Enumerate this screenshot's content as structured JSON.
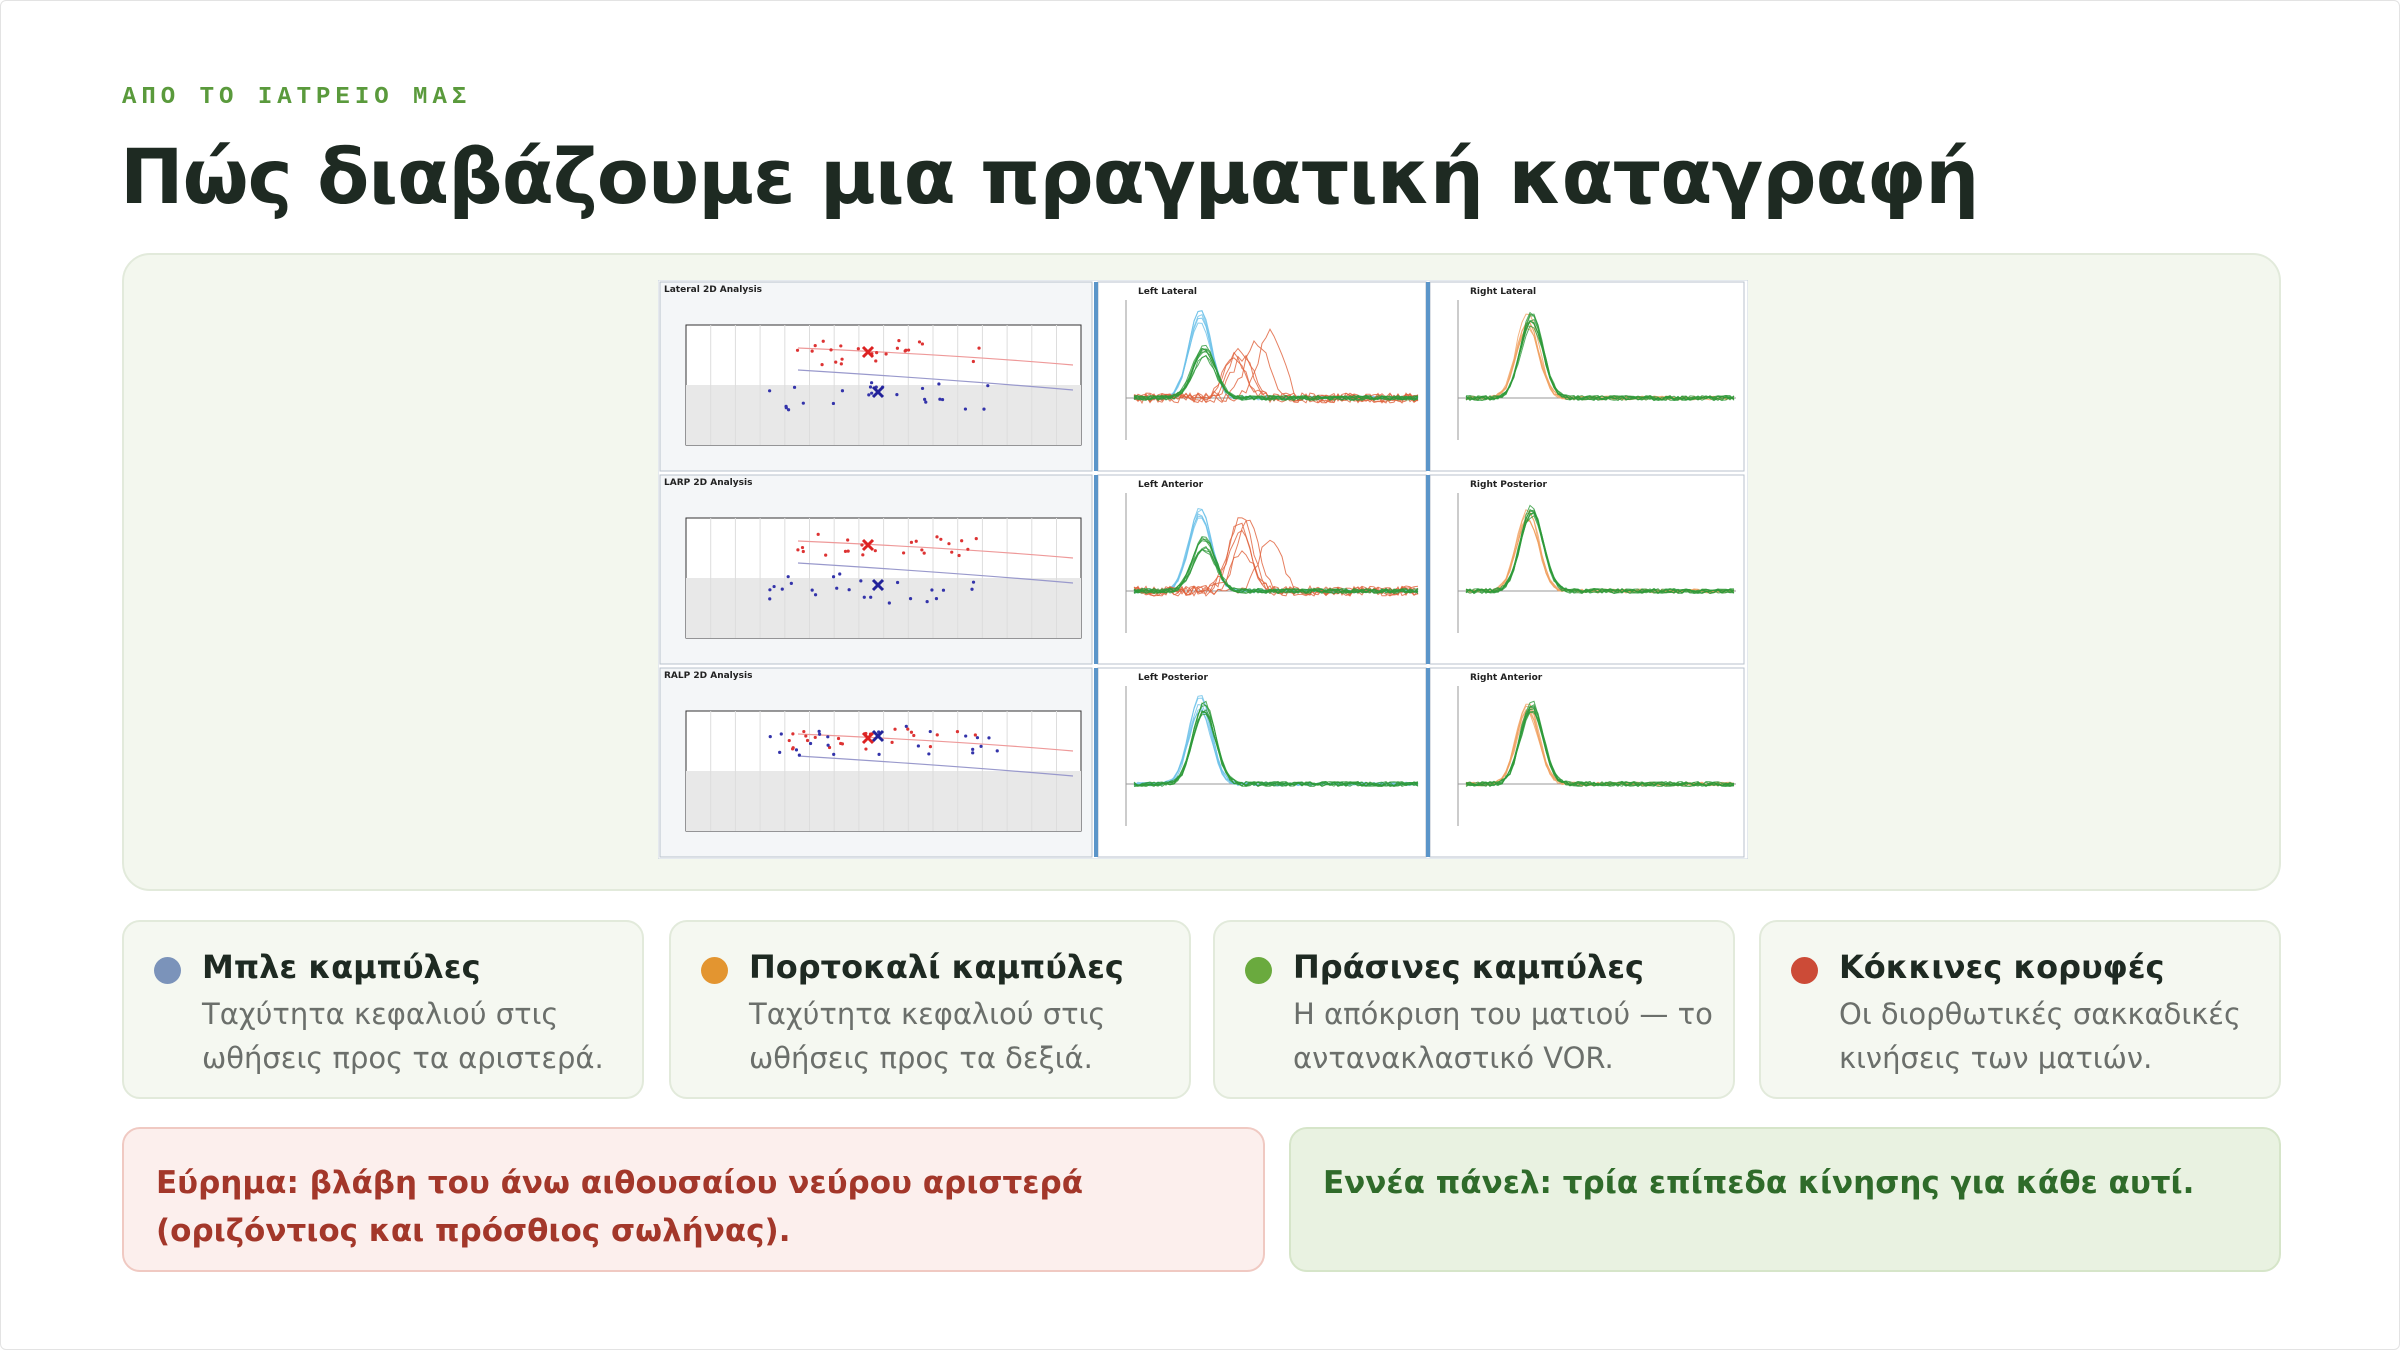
{
  "header": {
    "kicker": "ΑΠΟ ΤΟ ΙΑΤΡΕΙΟ ΜΑΣ",
    "title": "Πώς διαβάζουμε μια πραγματική καταγραφή"
  },
  "figure": {
    "rows": [
      {
        "analysis": "Lateral 2D Analysis",
        "left": "Left Lateral",
        "right": "Right Lateral"
      },
      {
        "analysis": "LARP 2D Analysis",
        "left": "Left Anterior",
        "right": "Right Posterior"
      },
      {
        "analysis": "RALP 2D Analysis",
        "left": "Left Posterior",
        "right": "Right Anterior"
      }
    ]
  },
  "legend": [
    {
      "label": "Μπλε καμπύλες",
      "text": "Ταχύτητα κεφαλιού στις ωθήσεις προς τα αριστερά."
    },
    {
      "label": "Πορτοκαλί καμπύλες",
      "text": "Ταχύτητα κεφαλιού στις ωθήσεις προς τα δεξιά."
    },
    {
      "label": "Πράσινες καμπύλες",
      "text": "Η απόκριση του ματιού — το αντανακλαστικό VOR."
    },
    {
      "label": "Κόκκινες κορυφές",
      "text": "Οι διορθωτικές σακκαδικές κινήσεις των ματιών."
    }
  ],
  "finding": "Εύρημα: βλάβη του άνω αιθουσαίου νεύρου αριστερά (οριζόντιος και πρόσθιος σωλήνας).",
  "note": "Εννέα πάνελ: τρία επίπεδα κίνησης για κάθε αυτί."
}
